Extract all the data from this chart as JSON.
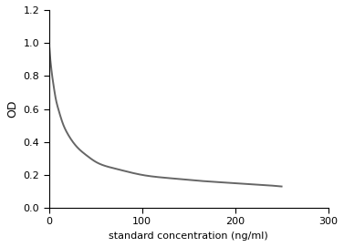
{
  "title": "",
  "xlabel": "standard concentration (ng/ml)",
  "ylabel": "OD",
  "xlim": [
    0,
    300
  ],
  "ylim": [
    0,
    1.2
  ],
  "xticks": [
    0,
    100,
    200,
    300
  ],
  "yticks": [
    0,
    0.2,
    0.4,
    0.6,
    0.8,
    1.0,
    1.2
  ],
  "curve_color": "#666666",
  "curve_linewidth": 1.4,
  "background_color": "#ffffff",
  "axes_background": "#ffffff",
  "x_data": [
    0,
    0.5,
    1,
    2,
    3,
    5,
    7,
    10,
    15,
    20,
    30,
    40,
    50,
    70,
    100,
    130,
    160,
    200,
    250
  ],
  "y_data": [
    1.0,
    0.97,
    0.93,
    0.87,
    0.82,
    0.74,
    0.67,
    0.6,
    0.51,
    0.45,
    0.37,
    0.32,
    0.28,
    0.24,
    0.2,
    0.18,
    0.165,
    0.15,
    0.13
  ],
  "xlabel_fontsize": 8,
  "ylabel_fontsize": 9,
  "tick_labelsize": 8,
  "spine_color": "#000000",
  "tick_color": "#000000",
  "label_color": "#000000"
}
